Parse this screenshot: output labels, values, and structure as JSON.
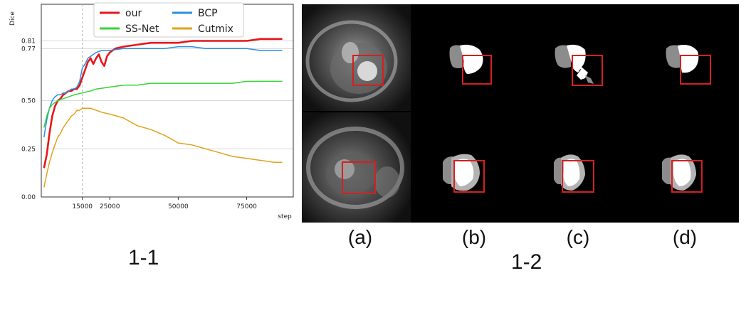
{
  "chart_data": {
    "type": "line",
    "title": "",
    "xlabel": "step",
    "ylabel": "Dice",
    "xlim": [
      0,
      92000
    ],
    "ylim": [
      0,
      1
    ],
    "x_ticks": [
      {
        "value": 15000,
        "label": "15000"
      },
      {
        "value": 25000,
        "label": "25000"
      },
      {
        "value": 50000,
        "label": "50000"
      },
      {
        "value": 75000,
        "label": "75000"
      }
    ],
    "y_ticks": [
      {
        "value": 0.0,
        "label": "0.00"
      },
      {
        "value": 0.25,
        "label": "0.25"
      },
      {
        "value": 0.5,
        "label": "0.50"
      },
      {
        "value": 0.77,
        "label": "0.77"
      },
      {
        "value": 0.81,
        "label": "0.81"
      }
    ],
    "series": [
      {
        "name": "our",
        "color": "#e8151b",
        "x": [
          1000,
          2000,
          3000,
          4000,
          5000,
          6000,
          7000,
          8000,
          9000,
          10000,
          11000,
          12000,
          13000,
          14000,
          15000,
          16000,
          17000,
          18000,
          19000,
          20000,
          21000,
          22000,
          23000,
          24000,
          25000,
          27000,
          30000,
          35000,
          40000,
          45000,
          50000,
          55000,
          60000,
          65000,
          70000,
          75000,
          80000,
          85000,
          88000
        ],
        "y": [
          0.15,
          0.22,
          0.33,
          0.42,
          0.47,
          0.5,
          0.51,
          0.53,
          0.54,
          0.55,
          0.55,
          0.56,
          0.56,
          0.58,
          0.62,
          0.66,
          0.7,
          0.72,
          0.69,
          0.72,
          0.74,
          0.7,
          0.68,
          0.73,
          0.75,
          0.77,
          0.78,
          0.79,
          0.8,
          0.8,
          0.8,
          0.81,
          0.81,
          0.81,
          0.81,
          0.81,
          0.82,
          0.82,
          0.82
        ]
      },
      {
        "name": "BCP",
        "color": "#2b8fe0",
        "x": [
          1000,
          2000,
          3000,
          4000,
          5000,
          6000,
          7000,
          8000,
          9000,
          10000,
          11000,
          12000,
          13000,
          14000,
          15000,
          16000,
          17000,
          18000,
          19000,
          20000,
          22000,
          25000,
          30000,
          35000,
          40000,
          45000,
          50000,
          55000,
          60000,
          65000,
          70000,
          75000,
          80000,
          85000,
          88000
        ],
        "y": [
          0.31,
          0.4,
          0.46,
          0.5,
          0.52,
          0.53,
          0.53,
          0.54,
          0.54,
          0.55,
          0.56,
          0.56,
          0.57,
          0.6,
          0.67,
          0.69,
          0.72,
          0.73,
          0.74,
          0.75,
          0.76,
          0.76,
          0.77,
          0.77,
          0.77,
          0.77,
          0.78,
          0.78,
          0.77,
          0.77,
          0.77,
          0.77,
          0.76,
          0.76,
          0.76
        ]
      },
      {
        "name": "SS-Net",
        "color": "#35d435",
        "x": [
          1000,
          2000,
          3000,
          4000,
          5000,
          6000,
          8000,
          10000,
          12000,
          15000,
          18000,
          20000,
          25000,
          30000,
          35000,
          40000,
          45000,
          50000,
          55000,
          60000,
          65000,
          70000,
          75000,
          80000,
          85000,
          88000
        ],
        "y": [
          0.36,
          0.42,
          0.46,
          0.48,
          0.49,
          0.5,
          0.51,
          0.52,
          0.53,
          0.54,
          0.55,
          0.56,
          0.57,
          0.58,
          0.58,
          0.59,
          0.59,
          0.59,
          0.59,
          0.59,
          0.59,
          0.59,
          0.6,
          0.6,
          0.6,
          0.6
        ]
      },
      {
        "name": "Cutmix",
        "color": "#e0a21a",
        "x": [
          1000,
          2000,
          3000,
          4000,
          5000,
          6000,
          7000,
          8000,
          9000,
          10000,
          11000,
          12000,
          13000,
          14000,
          15000,
          16000,
          18000,
          20000,
          22000,
          25000,
          30000,
          35000,
          40000,
          45000,
          50000,
          55000,
          60000,
          65000,
          70000,
          75000,
          80000,
          85000,
          88000
        ],
        "y": [
          0.05,
          0.12,
          0.18,
          0.23,
          0.27,
          0.31,
          0.33,
          0.36,
          0.38,
          0.4,
          0.42,
          0.43,
          0.45,
          0.45,
          0.46,
          0.46,
          0.46,
          0.45,
          0.44,
          0.43,
          0.41,
          0.37,
          0.35,
          0.32,
          0.28,
          0.27,
          0.25,
          0.23,
          0.21,
          0.2,
          0.19,
          0.18,
          0.18
        ]
      }
    ],
    "reference_line": {
      "x": 15000,
      "style": "dashed"
    },
    "legend_position": "top-center",
    "grid": "horizontal"
  },
  "figure": {
    "panel_captions": [
      "(a)",
      "(b)",
      "(c)",
      "(d)"
    ],
    "chart_label": "1-1",
    "images_label": "1-2",
    "highlight_color": "#d42020"
  }
}
